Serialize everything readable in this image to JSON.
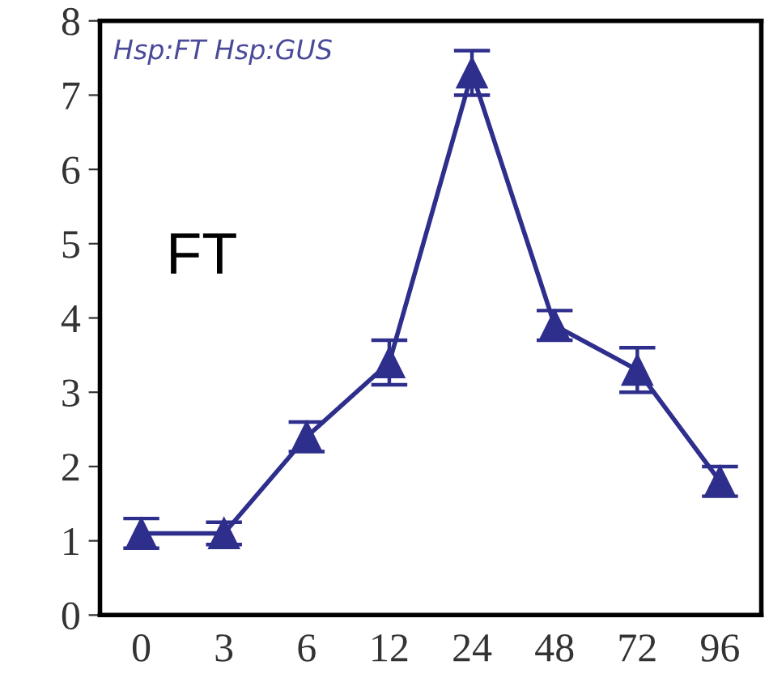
{
  "chart_data": {
    "type": "line",
    "categories": [
      "0",
      "3",
      "6",
      "12",
      "24",
      "48",
      "72",
      "96"
    ],
    "series": [
      {
        "color": "#2e2e8c",
        "values": [
          1.1,
          1.1,
          2.4,
          3.4,
          7.3,
          3.9,
          3.3,
          1.8
        ],
        "errors": [
          0.2,
          0.15,
          0.2,
          0.3,
          0.3,
          0.2,
          0.3,
          0.2
        ]
      }
    ],
    "ylim": [
      0,
      8
    ],
    "yticks": [
      0,
      1,
      2,
      3,
      4,
      5,
      6,
      7,
      8
    ],
    "annotations": [
      "Hsp:FT Hsp:GUS",
      "FT"
    ],
    "marker": "triangle",
    "line_style": "solid",
    "grid": false,
    "legend": false
  }
}
